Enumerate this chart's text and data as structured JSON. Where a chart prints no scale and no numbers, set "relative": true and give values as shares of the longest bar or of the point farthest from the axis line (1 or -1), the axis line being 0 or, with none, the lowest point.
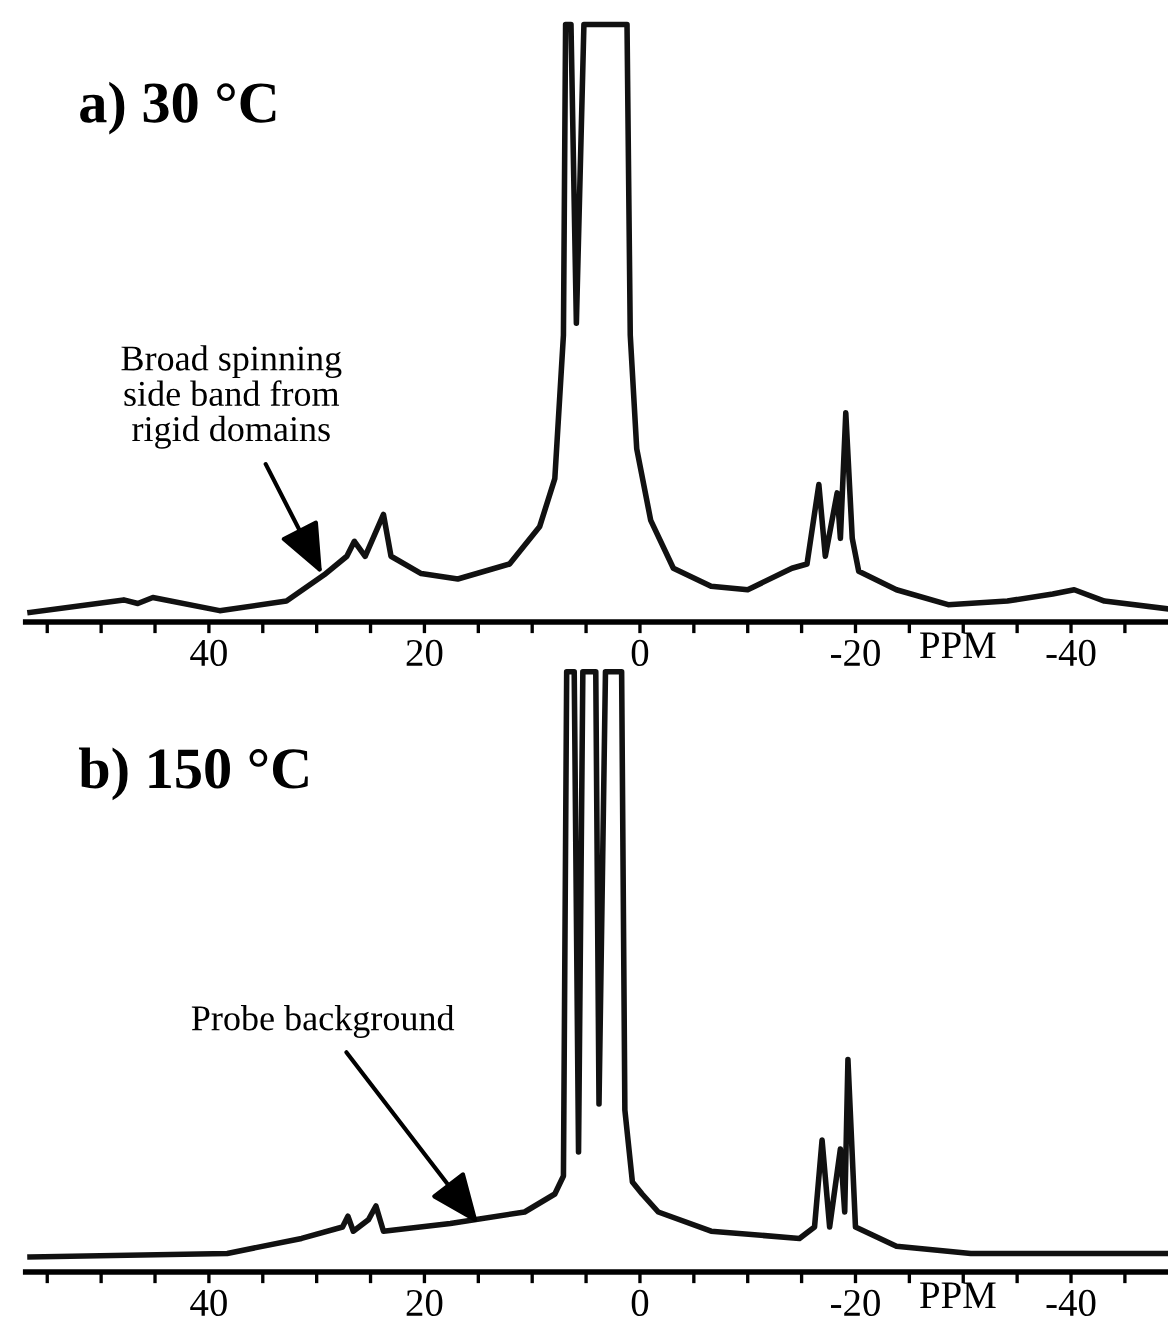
{
  "chart_data": [
    {
      "type": "line",
      "title": "a) 30 °C",
      "xlabel": "PPM",
      "relative": true,
      "xlim": [
        57,
        -49
      ],
      "xticks": [
        {
          "value": 55,
          "label": null
        },
        {
          "value": 50,
          "label": null
        },
        {
          "value": 45,
          "label": null
        },
        40,
        {
          "value": 35,
          "label": null
        },
        {
          "value": 30,
          "label": null
        },
        {
          "value": 25,
          "label": null
        },
        20,
        {
          "value": 15,
          "label": null
        },
        {
          "value": 10,
          "label": null
        },
        {
          "value": 5,
          "label": null
        },
        0,
        {
          "value": -5,
          "label": null
        },
        {
          "value": -10,
          "label": null
        },
        {
          "value": -15,
          "label": null
        },
        -20,
        {
          "value": -25,
          "label": null
        },
        {
          "value": -30,
          "label": null
        },
        {
          "value": -35,
          "label": null
        },
        -40,
        {
          "value": -45,
          "label": null
        }
      ],
      "tick_labels": "x",
      "grid": false,
      "legend": false,
      "annotations": [
        {
          "text": "Broad spinning\nside band from\nrigid domains",
          "x": 29.5,
          "y": 0.08
        }
      ],
      "series": [
        {
          "color": "#111111",
          "x": [
            56.6,
            47.9,
            46.6,
            45.2,
            39,
            32.8,
            29.3,
            27.2,
            26.5,
            25.5,
            23.8,
            23.1,
            20.3,
            16.9,
            12.1,
            9.3,
            7.9,
            7.1,
            6.9,
            6.4,
            5.9,
            5.2,
            1.2,
            0.9,
            0.3,
            -1.0,
            -3.1,
            -6.6,
            -10,
            -14.1,
            -15.5,
            -16.6,
            -17.2,
            -18.3,
            -18.6,
            -19.1,
            -19.7,
            -20.3,
            -23.8,
            -28.6,
            -34.1,
            -38.3,
            -40.3,
            -43.1,
            -49
          ],
          "values": [
            0.016,
            0.037,
            0.031,
            0.041,
            0.019,
            0.035,
            0.079,
            0.11,
            0.135,
            0.11,
            0.18,
            0.11,
            0.081,
            0.072,
            0.097,
            0.16,
            0.24,
            0.48,
            1,
            1,
            0.5,
            1,
            1,
            0.48,
            0.29,
            0.17,
            0.09,
            0.06,
            0.054,
            0.09,
            0.097,
            0.23,
            0.11,
            0.216,
            0.14,
            0.35,
            0.14,
            0.085,
            0.054,
            0.029,
            0.035,
            0.047,
            0.054,
            0.035,
            0.022
          ]
        }
      ]
    },
    {
      "type": "line",
      "title": "b) 150 °C",
      "xlabel": "PPM",
      "relative": true,
      "xlim": [
        57,
        -49
      ],
      "xticks": [
        {
          "value": 55,
          "label": null
        },
        {
          "value": 50,
          "label": null
        },
        {
          "value": 45,
          "label": null
        },
        40,
        {
          "value": 35,
          "label": null
        },
        {
          "value": 30,
          "label": null
        },
        {
          "value": 25,
          "label": null
        },
        20,
        {
          "value": 15,
          "label": null
        },
        {
          "value": 10,
          "label": null
        },
        {
          "value": 5,
          "label": null
        },
        0,
        {
          "value": -5,
          "label": null
        },
        {
          "value": -10,
          "label": null
        },
        {
          "value": -15,
          "label": null
        },
        -20,
        {
          "value": -25,
          "label": null
        },
        {
          "value": -30,
          "label": null
        },
        {
          "value": -35,
          "label": null
        },
        -40,
        {
          "value": -45,
          "label": null
        }
      ],
      "tick_labels": "x",
      "grid": false,
      "legend": false,
      "annotations": [
        {
          "text": "Probe background",
          "x": 15,
          "y": 0.08
        }
      ],
      "series": [
        {
          "color": "#111111",
          "x": [
            56.6,
            38.3,
            31.4,
            27.6,
            27.1,
            26.6,
            25.2,
            24.5,
            23.8,
            17.6,
            10.7,
            7.9,
            7.1,
            6.8,
            6.1,
            5.7,
            5.3,
            4.1,
            3.8,
            3.2,
            1.7,
            1.4,
            0.7,
            -0.2,
            -1.7,
            -6.6,
            -14.8,
            -16.2,
            -16.9,
            -17.6,
            -18.6,
            -19.0,
            -19.3,
            -20.0,
            -23.8,
            -30.7,
            -49
          ],
          "values": [
            0.025,
            0.031,
            0.056,
            0.075,
            0.093,
            0.068,
            0.087,
            0.11,
            0.068,
            0.081,
            0.1,
            0.13,
            0.16,
            1,
            1,
            0.2,
            1,
            1,
            0.28,
            1,
            1,
            0.27,
            0.15,
            0.13,
            0.1,
            0.068,
            0.056,
            0.075,
            0.22,
            0.075,
            0.205,
            0.1,
            0.354,
            0.075,
            0.043,
            0.031,
            0.031
          ]
        }
      ]
    }
  ]
}
